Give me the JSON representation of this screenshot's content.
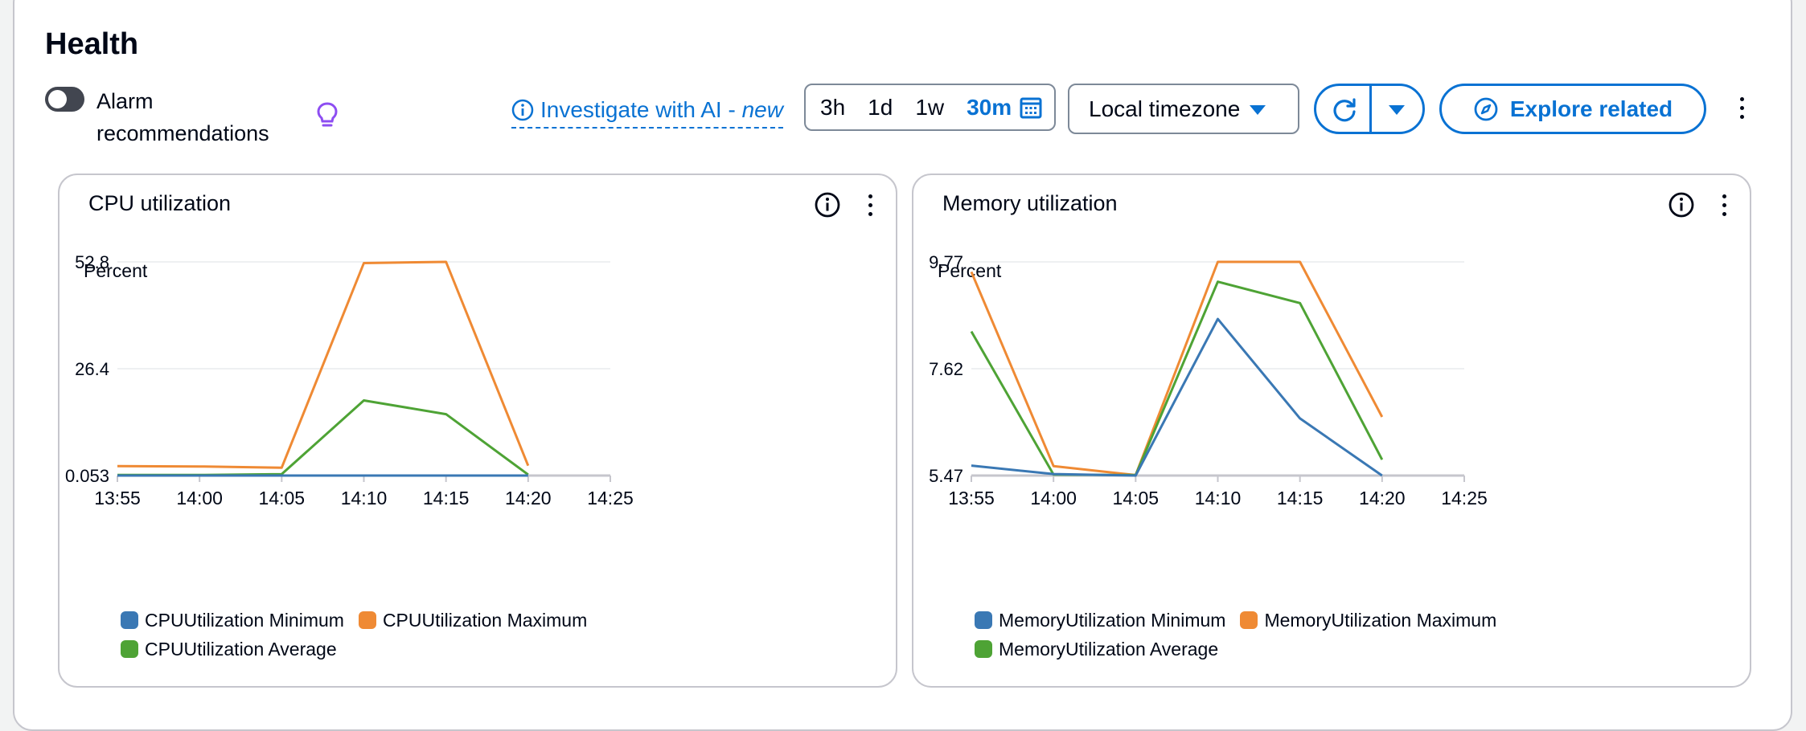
{
  "header": {
    "title": "Health",
    "alarm_toggle_label": "Alarm recommendations",
    "investigate_label": "Investigate with AI - ",
    "investigate_new": "new",
    "ranges": [
      "3h",
      "1d",
      "1w",
      "30m"
    ],
    "active_range": "30m",
    "timezone": "Local timezone",
    "explore_label": "Explore related"
  },
  "colors": {
    "minimum": "#3a78b4",
    "maximum": "#ef8a34",
    "average": "#4ea335",
    "link": "#0972d3"
  },
  "icons": [
    "info-icon",
    "lightbulb-icon",
    "calendar-icon",
    "caret-down-icon",
    "refresh-icon",
    "compass-icon",
    "more-vertical-icon"
  ],
  "chart_data": [
    {
      "type": "line",
      "title": "CPU utilization",
      "ylabel": "Percent",
      "x": [
        "13:55",
        "14:00",
        "14:05",
        "14:10",
        "14:15",
        "14:20"
      ],
      "x_ticks": [
        "13:55",
        "14:00",
        "14:05",
        "14:10",
        "14:15",
        "14:20",
        "14:25"
      ],
      "y_ticks": [
        "52.8",
        "26.4",
        "0.053"
      ],
      "ylim": [
        0.053,
        52.8
      ],
      "grid": true,
      "legend": "bottom",
      "series": [
        {
          "name": "CPUUtilization Minimum",
          "color": "#3a78b4",
          "values": [
            0.053,
            0.053,
            0.053,
            0.053,
            0.053,
            0.053
          ]
        },
        {
          "name": "CPUUtilization Maximum",
          "color": "#ef8a34",
          "values": [
            2.4,
            2.3,
            2.0,
            52.5,
            52.8,
            2.5
          ]
        },
        {
          "name": "CPUUtilization Average",
          "color": "#4ea335",
          "values": [
            0.2,
            0.2,
            0.4,
            18.6,
            15.2,
            0.3
          ]
        }
      ]
    },
    {
      "type": "line",
      "title": "Memory utilization",
      "ylabel": "Percent",
      "x": [
        "13:55",
        "14:00",
        "14:05",
        "14:10",
        "14:15",
        "14:20"
      ],
      "x_ticks": [
        "13:55",
        "14:00",
        "14:05",
        "14:10",
        "14:15",
        "14:20",
        "14:25"
      ],
      "y_ticks": [
        "9.77",
        "7.62",
        "5.47"
      ],
      "ylim": [
        5.47,
        9.77
      ],
      "grid": true,
      "legend": "bottom",
      "series": [
        {
          "name": "MemoryUtilization Minimum",
          "color": "#3a78b4",
          "values": [
            5.67,
            5.5,
            5.47,
            8.62,
            6.62,
            5.47
          ]
        },
        {
          "name": "MemoryUtilization Maximum",
          "color": "#ef8a34",
          "values": [
            9.57,
            5.66,
            5.48,
            9.77,
            9.77,
            6.65
          ]
        },
        {
          "name": "MemoryUtilization Average",
          "color": "#4ea335",
          "values": [
            8.37,
            5.49,
            5.48,
            9.37,
            8.94,
            5.79
          ]
        }
      ]
    }
  ]
}
